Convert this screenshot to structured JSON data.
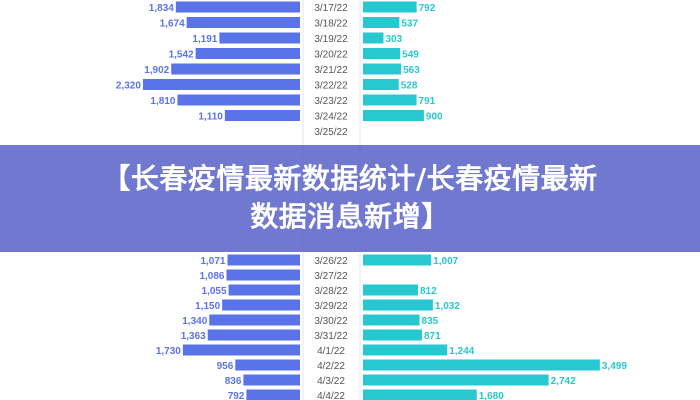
{
  "banner": {
    "line1": "【长春疫情最新数据统计/长春疫情最新",
    "line2": "数据消息新增】"
  },
  "chart_data": {
    "type": "bar",
    "orientation": "horizontal-butterfly",
    "categories": [
      "3/17/22",
      "3/18/22",
      "3/19/22",
      "3/20/22",
      "3/21/22",
      "3/22/22",
      "3/23/22",
      "3/24/22",
      "3/25/22",
      "3/26/22",
      "3/27/22",
      "3/28/22",
      "3/29/22",
      "3/30/22",
      "3/31/22",
      "4/1/22",
      "4/2/22",
      "4/3/22",
      "4/4/22"
    ],
    "series": [
      {
        "side": "left",
        "color": "#5b73e8",
        "values": [
          1834,
          1674,
          1191,
          1542,
          1902,
          2320,
          1810,
          1110,
          null,
          1071,
          1086,
          1055,
          1150,
          1340,
          1363,
          1730,
          956,
          836,
          792
        ]
      },
      {
        "side": "right",
        "color": "#27c8d0",
        "values": [
          792,
          537,
          303,
          549,
          563,
          528,
          791,
          900,
          null,
          1007,
          null,
          812,
          1032,
          835,
          871,
          1244,
          3499,
          2742,
          1680
        ]
      }
    ],
    "value_labels": {
      "left": [
        "1,834",
        "1,674",
        "1,191",
        "1,542",
        "1,902",
        "2,320",
        "1,810",
        "1,110",
        "",
        "1,071",
        "1,086",
        "1,055",
        "1,150",
        "1,340",
        "1,363",
        "1,730",
        "956",
        "836",
        "792"
      ],
      "right": [
        "792",
        "537",
        "303",
        "549",
        "563",
        "528",
        "791",
        "900",
        "",
        "1,007",
        "",
        "812",
        "1,032",
        "835",
        "871",
        "1,244",
        "3,499",
        "2,742",
        "1,680"
      ]
    }
  }
}
